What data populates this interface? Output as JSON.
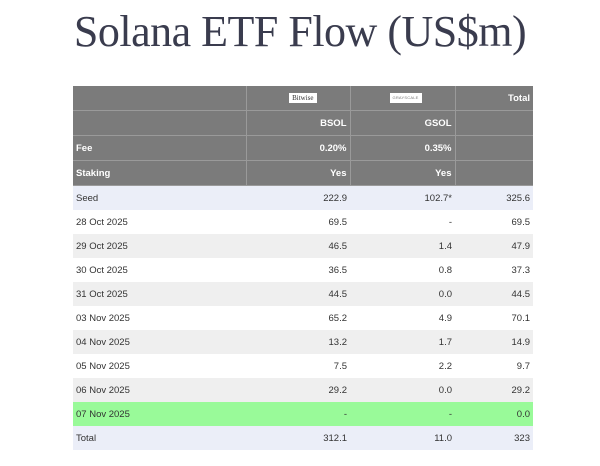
{
  "title": "Solana ETF Flow (US$m)",
  "header": {
    "issuers": [
      {
        "logo_text": "Bitwise",
        "logo_icon": "bitwise-logo"
      },
      {
        "logo_text": "GRAYSCALE",
        "logo_icon": "grayscale-logo"
      }
    ],
    "total_label": "Total",
    "tickers": [
      "BSOL",
      "GSOL"
    ],
    "fee": {
      "label": "Fee",
      "values": [
        "0.20%",
        "0.35%"
      ]
    },
    "staking": {
      "label": "Staking",
      "values": [
        "Yes",
        "Yes"
      ]
    }
  },
  "rows": [
    {
      "label": "Seed",
      "bsol": "222.9",
      "gsol": "102.7*",
      "total": "325.6"
    },
    {
      "label": "28 Oct 2025",
      "bsol": "69.5",
      "gsol": "-",
      "total": "69.5"
    },
    {
      "label": "29 Oct 2025",
      "bsol": "46.5",
      "gsol": "1.4",
      "total": "47.9"
    },
    {
      "label": "30 Oct 2025",
      "bsol": "36.5",
      "gsol": "0.8",
      "total": "37.3"
    },
    {
      "label": "31 Oct 2025",
      "bsol": "44.5",
      "gsol": "0.0",
      "total": "44.5"
    },
    {
      "label": "03 Nov 2025",
      "bsol": "65.2",
      "gsol": "4.9",
      "total": "70.1"
    },
    {
      "label": "04 Nov 2025",
      "bsol": "13.2",
      "gsol": "1.7",
      "total": "14.9"
    },
    {
      "label": "05 Nov 2025",
      "bsol": "7.5",
      "gsol": "2.2",
      "total": "9.7"
    },
    {
      "label": "06 Nov 2025",
      "bsol": "29.2",
      "gsol": "0.0",
      "total": "29.2"
    },
    {
      "label": "07 Nov 2025",
      "bsol": "-",
      "gsol": "-",
      "total": "0.0"
    }
  ],
  "total_row": {
    "label": "Total",
    "bsol": "312.1",
    "gsol": "11.0",
    "total": "323"
  },
  "colors": {
    "header_bg": "#7b7b7b",
    "highlight_row": "#99fa99",
    "seed_total_bg": "#ebeef8",
    "title": "#3a3c4e"
  }
}
